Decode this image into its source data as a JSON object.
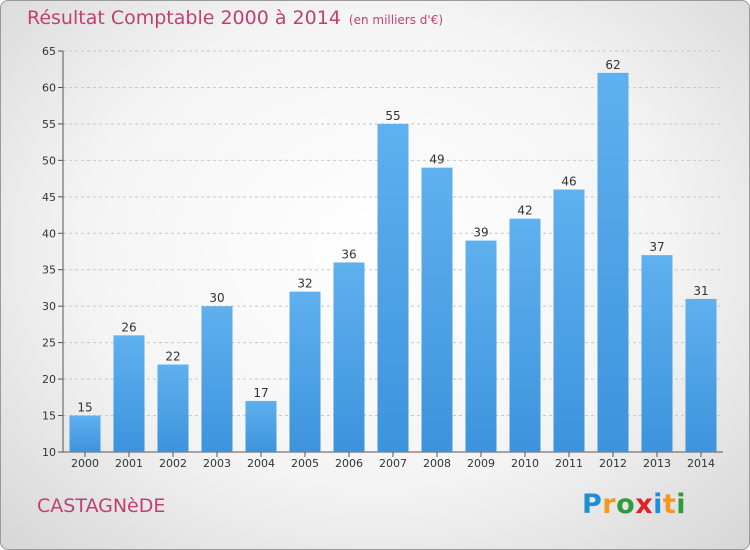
{
  "title": "Résultat Comptable 2000 à 2014",
  "subtitle": "(en milliers d'€)",
  "commune": "CASTAGNèDE",
  "logo": {
    "letters": [
      "P",
      "r",
      "o",
      "x",
      "i",
      "t",
      "i"
    ],
    "colors": [
      "#1e8fd6",
      "#f39a1e",
      "#2f9b3a",
      "#e2202a",
      "#1e8fd6",
      "#f39a1e",
      "#2f9b3a"
    ]
  },
  "colors": {
    "bar": "#3d93dc",
    "bar_light": "#5fb0ee",
    "title": "#c23f73"
  },
  "chart_data": {
    "type": "bar",
    "title": "Résultat Comptable 2000 à 2014",
    "subtitle": "(en milliers d'€)",
    "categories": [
      "2000",
      "2001",
      "2002",
      "2003",
      "2004",
      "2005",
      "2006",
      "2007",
      "2008",
      "2009",
      "2010",
      "2011",
      "2012",
      "2013",
      "2014"
    ],
    "values": [
      15,
      26,
      22,
      30,
      17,
      32,
      36,
      55,
      49,
      39,
      42,
      46,
      62,
      37,
      31
    ],
    "ylim": [
      10,
      65
    ],
    "yticks": [
      10,
      15,
      20,
      25,
      30,
      35,
      40,
      45,
      50,
      55,
      60,
      65
    ],
    "grid": true
  }
}
